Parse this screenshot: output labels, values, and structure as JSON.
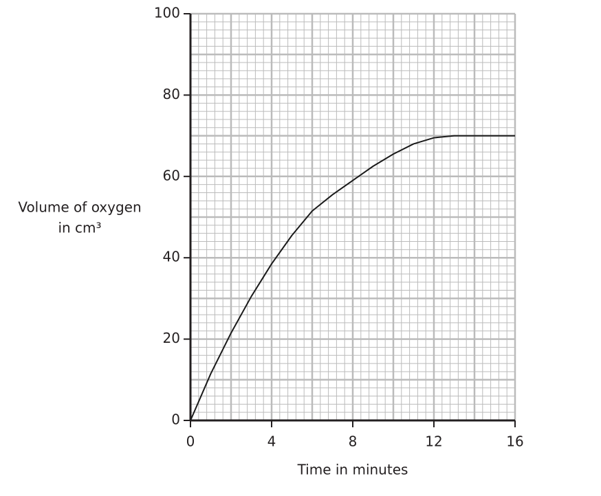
{
  "chart_data": {
    "type": "line",
    "xlabel": "Time in minutes",
    "ylabel": [
      "Volume of oxygen",
      "in cm³"
    ],
    "x": [
      0,
      1,
      2,
      3,
      4,
      5,
      6,
      7,
      8,
      9,
      10,
      11,
      12,
      13,
      14,
      15,
      16
    ],
    "series": [
      {
        "color": "#1a1a1a",
        "values": [
          0,
          11.5,
          21.5,
          30.5,
          38.5,
          45.5,
          51.5,
          55.5,
          59,
          62.5,
          65.5,
          68,
          69.5,
          70,
          70,
          70,
          70
        ]
      }
    ],
    "xlim": [
      0,
      16
    ],
    "xticks": [
      0,
      4,
      8,
      12,
      16
    ],
    "ylim": [
      0,
      100
    ],
    "yticks": [
      0,
      20,
      40,
      60,
      80,
      100
    ],
    "grid": true
  }
}
